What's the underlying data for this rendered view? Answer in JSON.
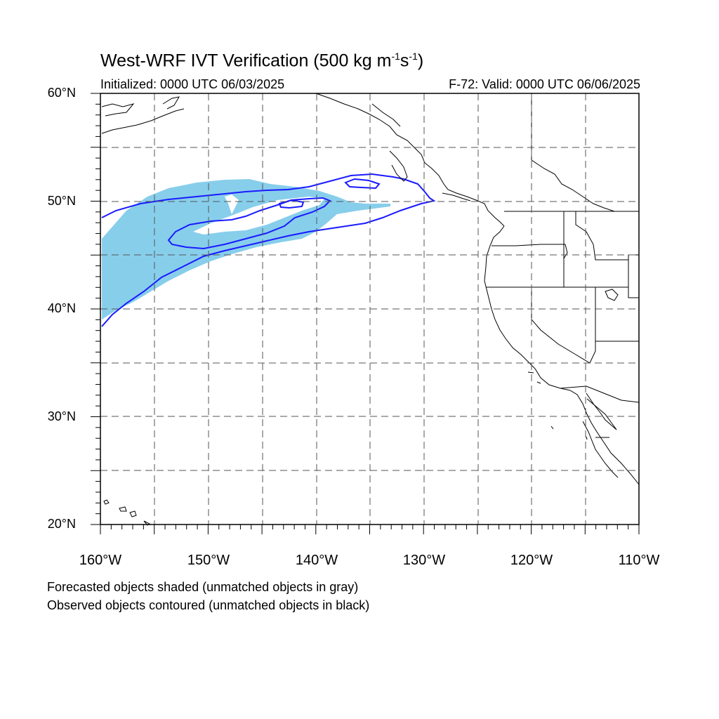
{
  "title": {
    "main": "West-WRF IVT Verification (500 kg m",
    "sup1": "-1",
    "mid": "s",
    "sup2": "-1",
    "end": ")"
  },
  "initialized": "Initialized: 0000 UTC 06/03/2025",
  "valid": "F-72: Valid: 0000 UTC 06/06/2025",
  "latitude_labels": [
    "60°N",
    "50°N",
    "40°N",
    "30°N",
    "20°N"
  ],
  "longitude_labels": [
    "160°W",
    "150°W",
    "140°W",
    "130°W",
    "120°W",
    "110°W"
  ],
  "notes": [
    "Forecasted objects shaded (unmatched objects in gray)",
    "Observed objects contoured (unmatched objects in black)"
  ],
  "colors": {
    "forecast_fill": "#87ceeb",
    "observed_contour": "#1a1aff",
    "coastline": "#000000",
    "grid": "#555555"
  },
  "map_extent": {
    "lon_min": -160,
    "lon_max": -110,
    "lat_min": 20,
    "lat_max": 60
  }
}
